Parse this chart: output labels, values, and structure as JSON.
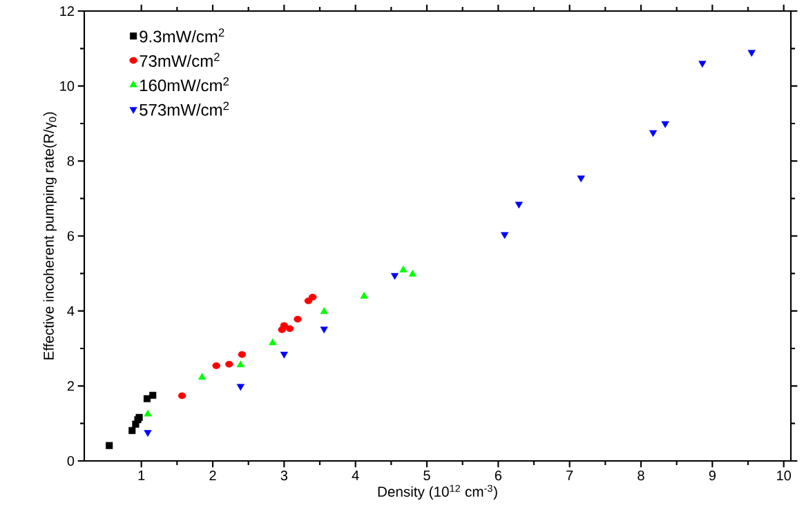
{
  "chart_data": {
    "type": "scatter",
    "xlabel": "Density (10$^{12}$ cm$^{-3}$)",
    "ylabel": "Effective incoherent pumping rate(R/γ$_{0}$)",
    "xlim": [
      0.2,
      10.1
    ],
    "ylim": [
      0,
      12
    ],
    "xticks": [
      1,
      2,
      3,
      4,
      5,
      6,
      7,
      8,
      9,
      10
    ],
    "yticks": [
      0,
      2,
      4,
      6,
      8,
      10,
      12
    ],
    "grid": false,
    "legend": "top left",
    "series": [
      {
        "name": "9.3mW/cm$^{2}$",
        "color": "#000000",
        "marker": "square",
        "x": [
          0.55,
          0.87,
          0.92,
          0.95,
          0.97,
          1.08,
          1.16
        ],
        "values": [
          0.41,
          0.81,
          0.98,
          1.1,
          1.16,
          1.66,
          1.75
        ]
      },
      {
        "name": "73mW/cm$^{2}$",
        "color": "#ff0000",
        "marker": "circle",
        "x": [
          1.57,
          2.05,
          2.23,
          2.41,
          2.97,
          3.0,
          3.08,
          3.19,
          3.34,
          3.4
        ],
        "values": [
          1.74,
          2.54,
          2.58,
          2.84,
          3.5,
          3.61,
          3.53,
          3.78,
          4.27,
          4.37
        ]
      },
      {
        "name": "160mW/cm$^{2}$",
        "color": "#00ff00",
        "marker": "triangle",
        "x": [
          1.09,
          1.85,
          2.39,
          2.84,
          3.56,
          4.12,
          4.67,
          4.8
        ],
        "values": [
          1.25,
          2.23,
          2.56,
          3.15,
          3.98,
          4.39,
          5.09,
          4.98
        ]
      },
      {
        "name": "573mW/cm$^{2}$",
        "color": "#0000ff",
        "marker": "triangle down",
        "x": [
          1.09,
          2.39,
          3.0,
          3.56,
          4.55,
          6.09,
          6.29,
          7.16,
          8.17,
          8.34,
          8.86,
          9.55
        ],
        "values": [
          0.76,
          1.99,
          2.85,
          3.52,
          4.95,
          6.04,
          6.85,
          7.55,
          8.76,
          9.0,
          10.61,
          10.9
        ]
      }
    ]
  }
}
